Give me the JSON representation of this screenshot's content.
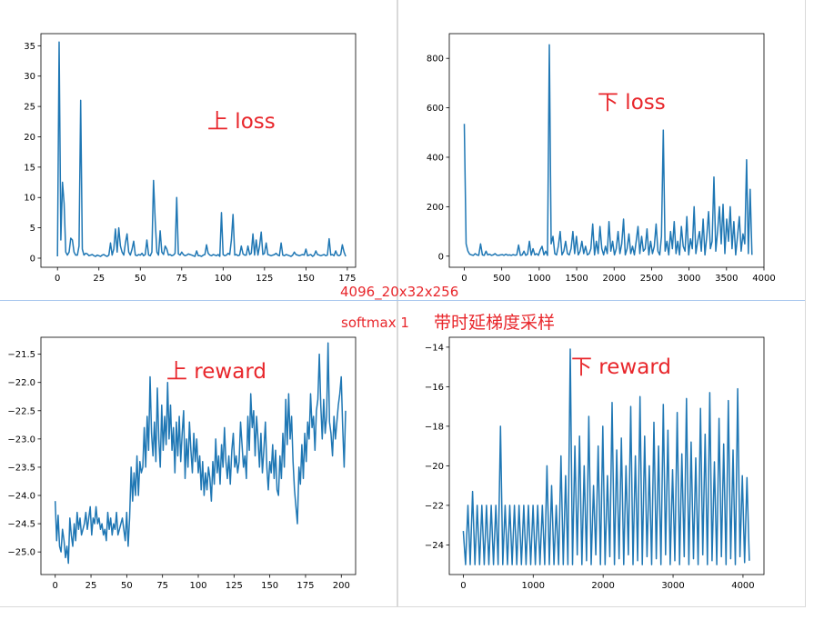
{
  "annotations": {
    "line1": "4096_20x32x256",
    "line2": "softmax 1",
    "line3": "带时延梯度采样"
  },
  "colors": {
    "series": "#1f77b4",
    "annotation": "#e8262b"
  },
  "chart_data": [
    {
      "type": "line",
      "label": "上 loss",
      "xlim": [
        -10,
        180
      ],
      "ylim": [
        -1.5,
        37
      ],
      "xticks": [
        0,
        25,
        50,
        75,
        100,
        125,
        150,
        175
      ],
      "yticks": [
        0,
        5,
        10,
        15,
        20,
        25,
        30,
        35
      ],
      "series": [
        {
          "values": [
            0.3,
            35.6,
            3.0,
            12.5,
            9.0,
            1.0,
            0.5,
            1.0,
            3.3,
            3.0,
            1.0,
            0.5,
            0.5,
            2.0,
            26.0,
            1.5,
            0.5,
            0.8,
            0.7,
            0.4,
            0.5,
            0.6,
            0.4,
            0.3,
            0.5,
            0.4,
            0.3,
            0.5,
            0.6,
            0.4,
            0.3,
            0.5,
            2.5,
            0.5,
            1.5,
            4.8,
            1.0,
            5.0,
            2.0,
            1.0,
            0.5,
            2.5,
            4.0,
            1.0,
            0.5,
            1.5,
            2.8,
            0.5,
            0.4,
            0.6,
            0.5,
            0.8,
            0.4,
            0.6,
            3.0,
            0.5,
            0.4,
            1.0,
            12.8,
            6.0,
            1.0,
            0.5,
            4.5,
            1.0,
            0.6,
            2.0,
            1.5,
            0.5,
            0.6,
            0.4,
            0.5,
            0.8,
            10.0,
            0.7,
            0.5,
            1.0,
            0.6,
            0.4,
            0.5,
            0.7,
            0.6,
            0.5,
            0.4,
            0.3,
            1.2,
            0.4,
            0.4,
            0.3,
            0.5,
            0.6,
            2.2,
            0.8,
            0.5,
            0.4,
            0.6,
            0.5,
            0.4,
            0.6,
            0.3,
            7.5,
            0.6,
            0.4,
            0.5,
            0.8,
            0.6,
            3.0,
            7.2,
            0.5,
            0.6,
            0.4,
            0.5,
            2.0,
            0.7,
            0.5,
            0.5,
            2.0,
            0.6,
            0.8,
            4.0,
            0.5,
            3.0,
            0.5,
            2.0,
            4.3,
            0.6,
            0.8,
            2.5,
            0.6,
            0.5,
            0.4,
            0.5,
            0.6,
            0.8,
            0.5,
            0.4,
            2.5,
            0.5,
            0.4,
            0.6,
            0.5,
            0.4,
            0.3,
            0.5,
            1.0,
            0.6,
            0.5,
            0.4,
            0.5,
            0.6,
            0.5,
            1.5,
            0.4,
            0.5,
            0.6,
            0.3,
            0.5,
            1.2,
            0.6,
            0.5,
            0.4,
            0.5,
            0.6,
            0.4,
            0.5,
            3.2,
            0.5,
            0.6,
            0.4,
            1.2,
            0.5,
            0.4,
            0.6,
            2.2,
            1.0,
            0.3
          ]
        }
      ]
    },
    {
      "type": "line",
      "label": "下 loss",
      "xlim": [
        -200,
        4000
      ],
      "ylim": [
        -45,
        900
      ],
      "xticks": [
        0,
        500,
        1000,
        1500,
        2000,
        2500,
        3000,
        3500,
        4000
      ],
      "yticks": [
        0,
        200,
        400,
        600,
        800
      ],
      "series": [
        {
          "values": [
            535,
            50,
            20,
            8,
            5,
            3,
            10,
            5,
            3,
            50,
            5,
            3,
            20,
            5,
            8,
            3,
            5,
            10,
            4,
            3,
            5,
            6,
            3,
            8,
            4,
            5,
            3,
            6,
            4,
            5,
            45,
            3,
            5,
            20,
            3,
            8,
            60,
            4,
            30,
            5,
            10,
            3,
            25,
            40,
            5,
            20,
            3,
            855,
            50,
            80,
            10,
            5,
            40,
            100,
            5,
            20,
            60,
            10,
            5,
            30,
            100,
            10,
            80,
            5,
            20,
            60,
            10,
            40,
            5,
            10,
            30,
            130,
            5,
            60,
            10,
            120,
            30,
            5,
            40,
            10,
            140,
            20,
            60,
            5,
            30,
            100,
            10,
            50,
            150,
            5,
            30,
            90,
            10,
            40,
            5,
            60,
            120,
            10,
            80,
            20,
            30,
            110,
            5,
            60,
            10,
            40,
            130,
            20,
            5,
            80,
            510,
            20,
            60,
            5,
            100,
            30,
            140,
            10,
            60,
            5,
            120,
            40,
            20,
            160,
            5,
            70,
            30,
            200,
            10,
            60,
            100,
            20,
            150,
            5,
            80,
            180,
            30,
            60,
            320,
            20,
            100,
            200,
            50,
            210,
            10,
            150,
            60,
            200,
            30,
            140,
            5,
            80,
            160,
            20,
            90,
            50,
            390,
            10,
            270,
            5
          ]
        }
      ]
    },
    {
      "type": "line",
      "label": "上 reward",
      "xlim": [
        -10,
        210
      ],
      "ylim": [
        -25.4,
        -21.2
      ],
      "xticks": [
        0,
        25,
        50,
        75,
        100,
        125,
        150,
        175,
        200
      ],
      "yticks": [
        -21.5,
        -22.0,
        -22.5,
        -23.0,
        -23.5,
        -24.0,
        -24.5,
        -25.0
      ],
      "series": [
        {
          "values": [
            -24.1,
            -24.8,
            -24.35,
            -24.9,
            -25.0,
            -24.6,
            -24.8,
            -25.1,
            -24.9,
            -25.2,
            -24.4,
            -24.7,
            -24.9,
            -24.5,
            -24.8,
            -24.3,
            -24.6,
            -24.4,
            -24.7,
            -24.6,
            -24.5,
            -24.3,
            -24.6,
            -24.4,
            -24.2,
            -24.7,
            -24.4,
            -24.5,
            -24.2,
            -24.5,
            -24.4,
            -24.6,
            -24.5,
            -24.7,
            -24.6,
            -24.8,
            -24.3,
            -24.6,
            -24.4,
            -24.7,
            -24.5,
            -24.6,
            -24.3,
            -24.7,
            -24.6,
            -24.5,
            -24.4,
            -24.6,
            -24.8,
            -24.3,
            -24.9,
            -24.4,
            -23.5,
            -24.1,
            -23.6,
            -24.0,
            -23.3,
            -24.0,
            -23.4,
            -23.6,
            -23.5,
            -22.8,
            -23.5,
            -22.6,
            -23.2,
            -21.9,
            -22.9,
            -23.3,
            -22.7,
            -23.4,
            -22.1,
            -23.0,
            -23.5,
            -22.4,
            -23.2,
            -22.6,
            -23.1,
            -22.0,
            -23.0,
            -22.4,
            -23.2,
            -22.8,
            -23.6,
            -22.7,
            -23.3,
            -22.6,
            -23.4,
            -22.9,
            -22.5,
            -23.7,
            -23.0,
            -23.5,
            -22.7,
            -23.2,
            -23.6,
            -22.9,
            -23.4,
            -23.0,
            -23.6,
            -23.3,
            -23.9,
            -23.4,
            -24.0,
            -23.6,
            -23.9,
            -23.5,
            -23.7,
            -24.1,
            -23.4,
            -23.8,
            -23.0,
            -23.6,
            -23.3,
            -23.8,
            -23.1,
            -23.5,
            -22.8,
            -23.4,
            -23.7,
            -23.3,
            -23.8,
            -23.2,
            -22.9,
            -23.5,
            -23.3,
            -23.6,
            -23.4,
            -22.7,
            -23.1,
            -23.5,
            -23.3,
            -23.7,
            -22.6,
            -23.2,
            -22.2,
            -22.8,
            -22.5,
            -23.3,
            -22.6,
            -23.0,
            -23.5,
            -22.9,
            -23.6,
            -23.2,
            -22.7,
            -23.5,
            -23.9,
            -23.4,
            -23.6,
            -23.1,
            -23.7,
            -23.2,
            -23.9,
            -24.0,
            -23.3,
            -23.7,
            -22.9,
            -23.5,
            -22.3,
            -23.1,
            -22.2,
            -23.0,
            -22.6,
            -23.4,
            -23.9,
            -24.2,
            -24.5,
            -23.5,
            -23.8,
            -23.1,
            -23.7,
            -22.9,
            -23.4,
            -22.7,
            -23.0,
            -22.2,
            -22.8,
            -22.6,
            -23.2,
            -22.5,
            -22.3,
            -21.5,
            -22.4,
            -23.0,
            -22.3,
            -22.9,
            -22.6,
            -21.3,
            -22.7,
            -22.9,
            -23.3,
            -22.6,
            -23.0,
            -22.7,
            -22.4,
            -22.2,
            -21.9,
            -22.8,
            -23.5,
            -22.5
          ]
        }
      ]
    },
    {
      "type": "line",
      "label": "下 reward",
      "xlim": [
        -200,
        4300
      ],
      "ylim": [
        -25.5,
        -13.5
      ],
      "xticks": [
        0,
        1000,
        2000,
        3000,
        4000
      ],
      "yticks": [
        -14,
        -16,
        -18,
        -20,
        -22,
        -24
      ],
      "series": [
        {
          "values": [
            -23.3,
            -25.0,
            -22.0,
            -25.0,
            -21.3,
            -25.0,
            -22.0,
            -25.0,
            -22.0,
            -25.0,
            -22.0,
            -25.0,
            -22.0,
            -25.0,
            -22.0,
            -25.0,
            -18.0,
            -25.0,
            -22.0,
            -25.0,
            -22.0,
            -25.0,
            -22.0,
            -25.0,
            -22.0,
            -25.0,
            -22.0,
            -25.0,
            -22.0,
            -25.0,
            -22.0,
            -25.0,
            -22.0,
            -25.0,
            -22.0,
            -25.0,
            -20.0,
            -25.0,
            -21.0,
            -25.0,
            -22.0,
            -25.0,
            -19.5,
            -25.0,
            -20.5,
            -25.0,
            -14.1,
            -25.0,
            -19.0,
            -24.5,
            -18.5,
            -25.0,
            -20.0,
            -24.8,
            -17.5,
            -25.0,
            -21.0,
            -24.5,
            -19.0,
            -25.0,
            -18.0,
            -25.0,
            -20.5,
            -24.6,
            -16.8,
            -25.0,
            -19.2,
            -24.7,
            -18.6,
            -25.0,
            -20.0,
            -24.5,
            -17.0,
            -25.0,
            -19.5,
            -24.8,
            -16.5,
            -25.0,
            -18.5,
            -24.6,
            -20.0,
            -25.0,
            -17.8,
            -24.7,
            -19.0,
            -25.0,
            -16.9,
            -24.5,
            -18.2,
            -25.0,
            -20.2,
            -24.8,
            -17.3,
            -25.0,
            -19.4,
            -24.6,
            -16.6,
            -25.0,
            -18.8,
            -24.7,
            -19.6,
            -25.0,
            -17.1,
            -24.5,
            -18.4,
            -25.0,
            -16.3,
            -24.8,
            -19.8,
            -25.0,
            -17.6,
            -24.6,
            -18.9,
            -25.0,
            -16.7,
            -24.7,
            -19.2,
            -25.0,
            -16.1,
            -24.6,
            -20.5,
            -24.9,
            -20.6,
            -24.8
          ]
        }
      ]
    }
  ]
}
